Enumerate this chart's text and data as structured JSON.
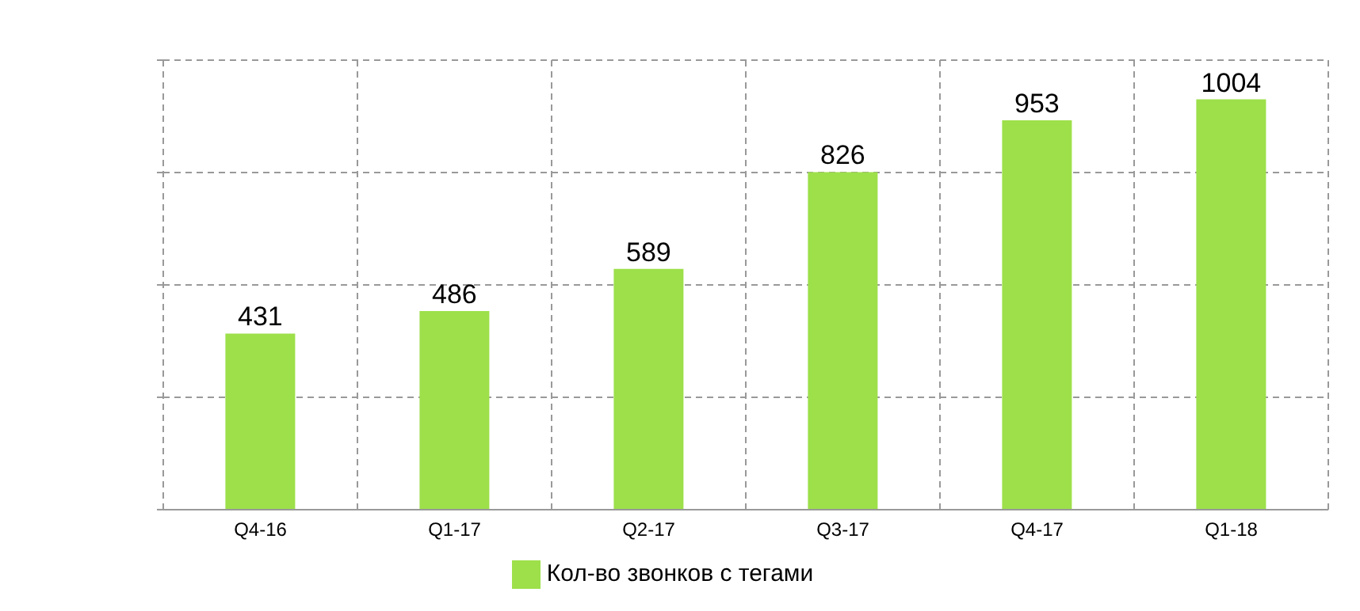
{
  "chart_data": {
    "type": "bar",
    "categories": [
      "Q4-16",
      "Q1-17",
      "Q2-17",
      "Q3-17",
      "Q4-17",
      "Q1-18"
    ],
    "series": [
      {
        "name": "Кол-во звонков с тегами",
        "color": "#9de04a",
        "values": [
          431,
          486,
          589,
          826,
          953,
          1004
        ]
      }
    ],
    "ylim": [
      0,
      1100
    ],
    "yticks": [
      {
        "value": 0,
        "label": null
      },
      {
        "value": 275,
        "label": null
      },
      {
        "value": 550,
        "label": null
      },
      {
        "value": 825,
        "label": null
      },
      {
        "value": 1100,
        "label": null
      }
    ],
    "tick_labels": "x",
    "grid": true,
    "legend": "bottom",
    "data_labels": true
  }
}
